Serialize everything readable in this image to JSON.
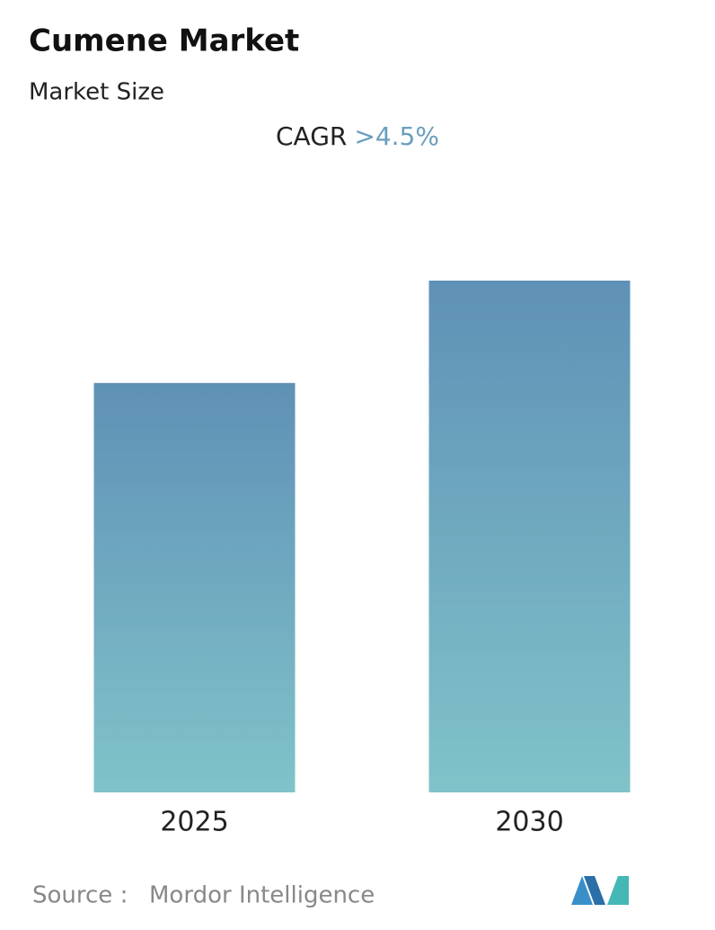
{
  "chart_data": {
    "type": "bar",
    "title": "Cumene Market",
    "subtitle": "Market Size",
    "cagr_label": "CAGR",
    "cagr_value": ">4.5%",
    "categories": [
      "2025",
      "2030"
    ],
    "values": [
      80,
      100
    ],
    "color": "#6a9fbd",
    "source_label": "Source :",
    "source": "Mordor Intelligence"
  }
}
